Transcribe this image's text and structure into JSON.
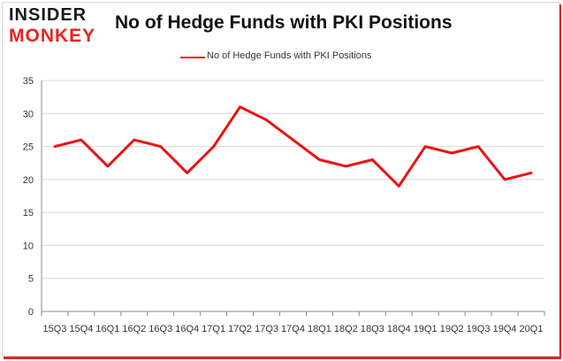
{
  "logo": {
    "line1": "INSIDER",
    "line2": "MONKEY"
  },
  "colors": {
    "series": "#ee1111",
    "grid": "#d9d9d9",
    "axis": "#888888",
    "brand_red": "#e8231f"
  },
  "chart_data": {
    "type": "line",
    "title": "No of Hedge Funds with PKI Positions",
    "xlabel": "",
    "ylabel": "",
    "categories": [
      "15Q3",
      "15Q4",
      "16Q1",
      "16Q2",
      "16Q3",
      "16Q4",
      "17Q1",
      "17Q2",
      "17Q3",
      "17Q4",
      "18Q1",
      "18Q2",
      "18Q3",
      "18Q4",
      "19Q1",
      "19Q2",
      "19Q3",
      "19Q4",
      "20Q1"
    ],
    "series": [
      {
        "name": "No of Hedge Funds with PKI Positions",
        "values": [
          25,
          26,
          22,
          26,
          25,
          21,
          25,
          31,
          29,
          26,
          23,
          22,
          23,
          19,
          25,
          24,
          25,
          20,
          21
        ]
      }
    ],
    "ylim": [
      0,
      35
    ],
    "yticks": [
      0,
      5,
      10,
      15,
      20,
      25,
      30,
      35
    ],
    "grid": true,
    "legend": "top-center"
  }
}
